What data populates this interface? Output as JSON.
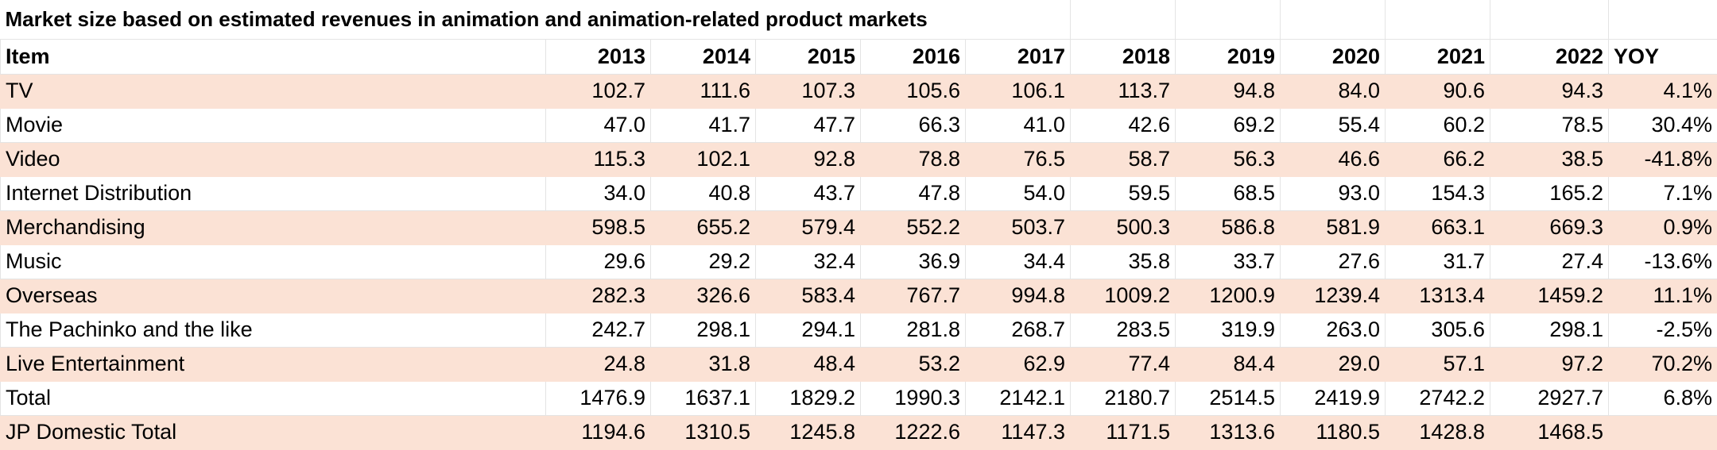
{
  "title": "Market size based on estimated revenues in animation and animation-related product markets",
  "table": {
    "header": [
      "Item",
      "2013",
      "2014",
      "2015",
      "2016",
      "2017",
      "2018",
      "2019",
      "2020",
      "2021",
      "2022",
      "YOY"
    ],
    "rows": [
      [
        "TV",
        "102.7",
        "111.6",
        "107.3",
        "105.6",
        "106.1",
        "113.7",
        "94.8",
        "84.0",
        "90.6",
        "94.3",
        "4.1%"
      ],
      [
        "Movie",
        "47.0",
        "41.7",
        "47.7",
        "66.3",
        "41.0",
        "42.6",
        "69.2",
        "55.4",
        "60.2",
        "78.5",
        "30.4%"
      ],
      [
        "Video",
        "115.3",
        "102.1",
        "92.8",
        "78.8",
        "76.5",
        "58.7",
        "56.3",
        "46.6",
        "66.2",
        "38.5",
        "-41.8%"
      ],
      [
        "Internet Distribution",
        "34.0",
        "40.8",
        "43.7",
        "47.8",
        "54.0",
        "59.5",
        "68.5",
        "93.0",
        "154.3",
        "165.2",
        "7.1%"
      ],
      [
        "Merchandising",
        "598.5",
        "655.2",
        "579.4",
        "552.2",
        "503.7",
        "500.3",
        "586.8",
        "581.9",
        "663.1",
        "669.3",
        "0.9%"
      ],
      [
        "Music",
        "29.6",
        "29.2",
        "32.4",
        "36.9",
        "34.4",
        "35.8",
        "33.7",
        "27.6",
        "31.7",
        "27.4",
        "-13.6%"
      ],
      [
        "Overseas",
        "282.3",
        "326.6",
        "583.4",
        "767.7",
        "994.8",
        "1009.2",
        "1200.9",
        "1239.4",
        "1313.4",
        "1459.2",
        "11.1%"
      ],
      [
        "The Pachinko and the like",
        "242.7",
        "298.1",
        "294.1",
        "281.8",
        "268.7",
        "283.5",
        "319.9",
        "263.0",
        "305.6",
        "298.1",
        "-2.5%"
      ],
      [
        "Live Entertainment",
        "24.8",
        "31.8",
        "48.4",
        "53.2",
        "62.9",
        "77.4",
        "84.4",
        "29.0",
        "57.1",
        "97.2",
        "70.2%"
      ],
      [
        "Total",
        "1476.9",
        "1637.1",
        "1829.2",
        "1990.3",
        "2142.1",
        "2180.7",
        "2514.5",
        "2419.9",
        "2742.2",
        "2927.7",
        "6.8%"
      ],
      [
        "JP Domestic Total",
        "1194.6",
        "1310.5",
        "1245.8",
        "1222.6",
        "1147.3",
        "1171.5",
        "1313.6",
        "1180.5",
        "1428.8",
        "1468.5"
      ]
    ]
  }
}
